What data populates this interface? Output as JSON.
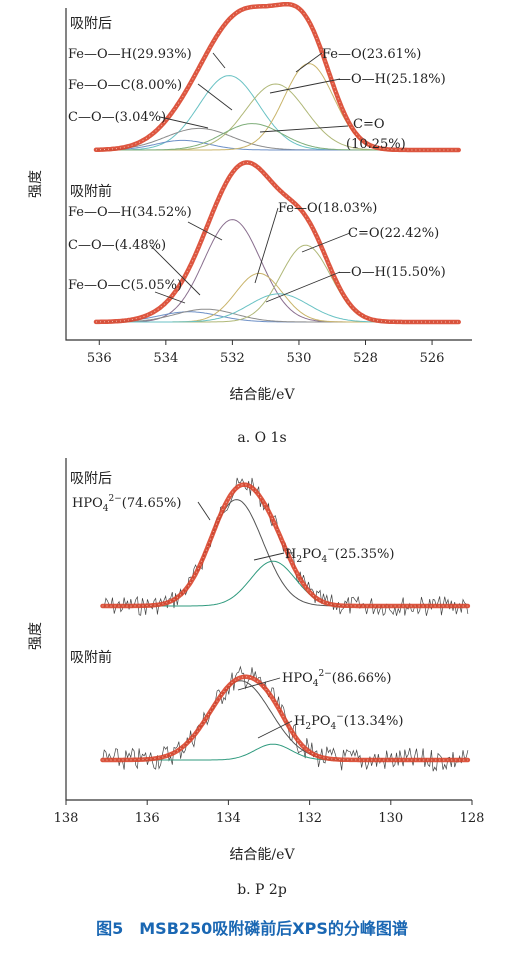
{
  "figure_caption": "图5　MSB250吸附磷前后XPS的分峰图谱",
  "chart_data": [
    {
      "type": "line",
      "subcaption": "a. O 1s",
      "xlabel": "结合能/eV",
      "ylabel": "强度",
      "x_ticks": [
        536,
        534,
        532,
        530,
        528,
        526
      ],
      "xlim": [
        537,
        524.8
      ],
      "x_reversed": true,
      "panels": [
        {
          "label": "吸附后",
          "fit_color": "#d9442b",
          "components": [
            {
              "name": "Fe—O—H(29.93%)",
              "center": 532.1,
              "width": 0.9,
              "height": 0.62,
              "color": "#69c2c4"
            },
            {
              "name": "Fe—O—C(8.00%)",
              "center": 533.0,
              "width": 1.0,
              "height": 0.18,
              "color": "#8c8c8c"
            },
            {
              "name": "C—O—(3.04%)",
              "center": 533.5,
              "width": 0.8,
              "height": 0.08,
              "color": "#6c8fc6"
            },
            {
              "name": "Fe—O(23.61%)",
              "center": 529.7,
              "width": 0.75,
              "height": 0.72,
              "color": "#c9b46a"
            },
            {
              "name": "—O—H(25.18%)",
              "center": 530.7,
              "width": 0.9,
              "height": 0.55,
              "color": "#b0b878"
            },
            {
              "name": "C=O(10.25%)",
              "center": 531.4,
              "width": 0.9,
              "height": 0.22,
              "color": "#7fae7a"
            }
          ]
        },
        {
          "label": "吸附前",
          "fit_color": "#d9442b",
          "components": [
            {
              "name": "Fe—O—H(34.52%)",
              "center": 532.0,
              "width": 0.85,
              "height": 0.8,
              "color": "#8a6f8f"
            },
            {
              "name": "C—O—(4.48%)",
              "center": 533.3,
              "width": 0.9,
              "height": 0.08,
              "color": "#6c8fc6"
            },
            {
              "name": "Fe—O—C(5.05%)",
              "center": 532.8,
              "width": 0.9,
              "height": 0.1,
              "color": "#8c8c8c"
            },
            {
              "name": "Fe—O(18.03%)",
              "center": 531.2,
              "width": 0.7,
              "height": 0.38,
              "color": "#c9b46a"
            },
            {
              "name": "C=O(22.42%)",
              "center": 529.8,
              "width": 0.75,
              "height": 0.6,
              "color": "#b0b878"
            },
            {
              "name": "—O—H(15.50%)",
              "center": 530.6,
              "width": 0.9,
              "height": 0.22,
              "color": "#69c2c4"
            }
          ]
        }
      ]
    },
    {
      "type": "line",
      "subcaption": "b. P 2p",
      "xlabel": "结合能/eV",
      "ylabel": "强度",
      "x_ticks": [
        138,
        136,
        134,
        132,
        130,
        128
      ],
      "xlim": [
        138,
        128
      ],
      "x_reversed": true,
      "panels": [
        {
          "label": "吸附后",
          "fit_color": "#d9442b",
          "components": [
            {
              "name": "HPO4 2−(74.65%)",
              "label_main": "HPO",
              "label_sub": "4",
              "label_sup": "2−",
              "label_tail": "(74.65%)",
              "center": 133.8,
              "width": 0.65,
              "height": 0.95,
              "color": "#555555"
            },
            {
              "name": "H2PO4 −(25.35%)",
              "label_main": "H",
              "label_sub": "2",
              "label_mid": "PO",
              "label_sub2": "4",
              "label_sup": "−",
              "label_tail": "(25.35%)",
              "center": 132.9,
              "width": 0.55,
              "height": 0.4,
              "color": "#2f9a7e"
            }
          ]
        },
        {
          "label": "吸附前",
          "fit_color": "#d9442b",
          "components": [
            {
              "name": "HPO4 2−(86.66%)",
              "label_main": "HPO",
              "label_sub": "4",
              "label_sup": "2−",
              "label_tail": "(86.66%)",
              "center": 133.7,
              "width": 0.75,
              "height": 0.9,
              "color": "#555555"
            },
            {
              "name": "H2PO4 −(13.34%)",
              "label_main": "H",
              "label_sub": "2",
              "label_mid": "PO",
              "label_sub2": "4",
              "label_sup": "−",
              "label_tail": "(13.34%)",
              "center": 132.9,
              "width": 0.45,
              "height": 0.18,
              "color": "#2f9a7e"
            }
          ]
        }
      ]
    }
  ]
}
